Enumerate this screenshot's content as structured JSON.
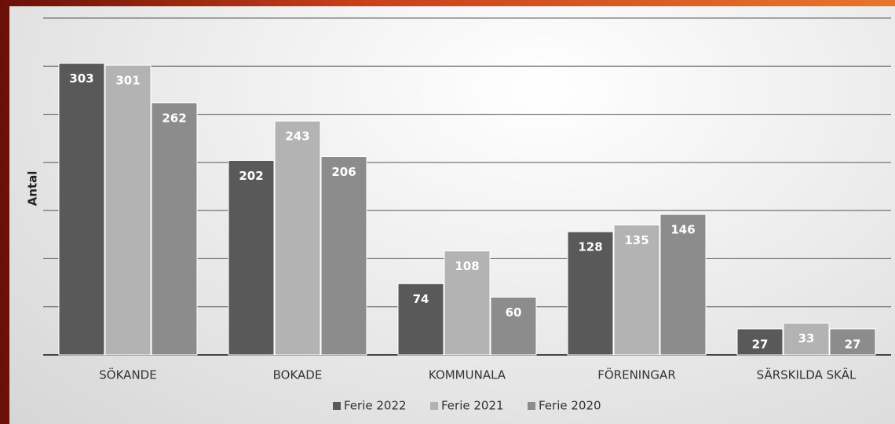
{
  "chart_data": {
    "type": "bar",
    "y_label": "Antal",
    "categories": [
      "SÖKANDE",
      "BOKADE",
      "KOMMUNALA",
      "FÖRENINGAR",
      "SÄRSKILDA SKÄL"
    ],
    "series": [
      {
        "name": "Ferie 2022",
        "color": "#595959",
        "values": [
          303,
          202,
          74,
          128,
          27
        ]
      },
      {
        "name": "Ferie 2021",
        "color": "#b3b3b3",
        "values": [
          301,
          243,
          108,
          135,
          33
        ]
      },
      {
        "name": "Ferie 2020",
        "color": "#8c8c8c",
        "values": [
          262,
          206,
          60,
          146,
          27
        ]
      }
    ],
    "ylim": [
      0,
      350
    ],
    "yticks": [
      0,
      50,
      100,
      150,
      200,
      250,
      300,
      350
    ],
    "grid": true,
    "tick_labels": false,
    "legend": "bottom"
  }
}
